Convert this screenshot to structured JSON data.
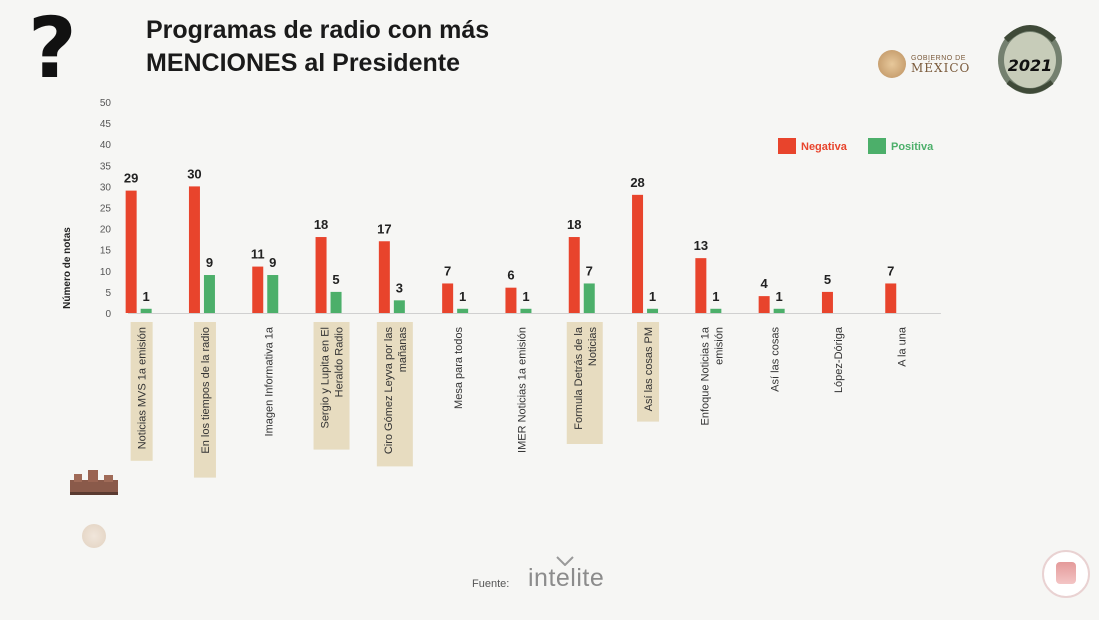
{
  "header": {
    "question_mark": "?",
    "title_line1": "Programas de radio con más",
    "title_line2": "MENCIONES al Presidente"
  },
  "logos": {
    "gov_small": "GOBIERNO DE",
    "gov_big": "MÉXICO",
    "year": "2021"
  },
  "footer": {
    "source_label": "Fuente:",
    "source_brand": "intelite"
  },
  "colors": {
    "negativa": "#e8442c",
    "positiva": "#4caf6a",
    "highlight": "#e7dcc0"
  },
  "chart_data": {
    "type": "bar",
    "ylabel": "Número de notas",
    "xlabel": "",
    "ylim": [
      0,
      50
    ],
    "yticks": [
      0,
      5,
      10,
      15,
      20,
      25,
      30,
      35,
      40,
      45,
      50
    ],
    "grid": false,
    "legend_position": "top-right",
    "categories": [
      "Noticias MVS 1a emisión",
      "En los tiempos de la radio",
      "Imagen Informativa 1a",
      "Sergio y Lupita en El Heraldo Radio",
      "Ciro Gómez Leyva por las mañanas",
      "Mesa para todos",
      "IMER Noticias 1a emisión",
      "Formula Detrás de la Noticias",
      "Así las cosas PM",
      "Enfoque Noticias 1a emisión",
      "Así las cosas",
      "López-Dóriga",
      "A la una"
    ],
    "highlighted": [
      true,
      true,
      false,
      true,
      true,
      false,
      false,
      true,
      true,
      false,
      false,
      false,
      false
    ],
    "series": [
      {
        "name": "Negativa",
        "values": [
          29,
          30,
          11,
          18,
          17,
          7,
          6,
          18,
          28,
          13,
          4,
          5,
          7
        ]
      },
      {
        "name": "Positiva",
        "values": [
          1,
          9,
          9,
          5,
          3,
          1,
          1,
          7,
          1,
          1,
          1,
          null,
          null
        ]
      }
    ]
  }
}
